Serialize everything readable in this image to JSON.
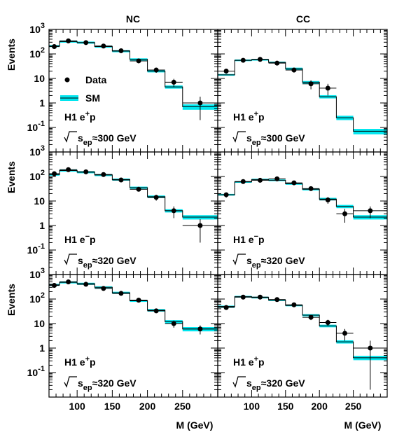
{
  "columns": [
    "NC",
    "CC"
  ],
  "y_label": "Events",
  "x_label": "M (GeV)",
  "x_ticks": [
    "100",
    "150",
    "200",
    "250"
  ],
  "y_ticks": [
    {
      "value": 1000,
      "base": "10",
      "exp": "3"
    },
    {
      "value": 100,
      "base": "10",
      "exp": "2"
    },
    {
      "value": 10,
      "base": "10",
      "exp": ""
    },
    {
      "value": 1,
      "base": "1",
      "exp": ""
    },
    {
      "value": 0.1,
      "base": "10",
      "exp": "-1"
    }
  ],
  "legend": {
    "data": "Data",
    "sm": "SM"
  },
  "colors": {
    "band": "#00e5ee",
    "ink": "#000000"
  },
  "chart_data": [
    {
      "type": "histogram-with-points",
      "row": 0,
      "column": "NC",
      "label_dataset": {
        "base": "H1 e",
        "sup": "+",
        "tail": "p"
      },
      "label_energy": "300 GeV",
      "xlim": [
        60,
        300
      ],
      "ylim": [
        0.01,
        1000
      ],
      "yscale": "log",
      "legend_placement": "left",
      "bins": [
        60,
        75,
        100,
        125,
        150,
        175,
        200,
        225,
        250,
        300
      ],
      "sm": [
        210,
        320,
        290,
        200,
        130,
        60,
        20,
        4.5,
        0.7
      ],
      "sm_err": [
        0.1,
        0.1,
        0.1,
        0.1,
        0.1,
        0.1,
        0.12,
        0.15,
        0.25
      ],
      "data_x": [
        67.5,
        87.5,
        112.5,
        137.5,
        162.5,
        187.5,
        212.5,
        237.5,
        275
      ],
      "data_y": [
        200,
        340,
        290,
        210,
        135,
        52,
        22,
        7,
        1.0
      ],
      "data_err": [
        14,
        18,
        17,
        14,
        12,
        7,
        5,
        2.6,
        0.8
      ]
    },
    {
      "type": "histogram-with-points",
      "row": 0,
      "column": "CC",
      "label_dataset": {
        "base": "H1 e",
        "sup": "+",
        "tail": "p"
      },
      "label_energy": "300 GeV",
      "xlim": [
        50,
        300
      ],
      "ylim": [
        0.01,
        1000
      ],
      "yscale": "log",
      "bins": [
        50,
        75,
        100,
        125,
        150,
        175,
        200,
        225,
        250,
        300
      ],
      "sm": [
        14,
        55,
        58,
        45,
        25,
        7,
        1.8,
        0.25,
        0.07
      ],
      "sm_err": [
        0.08,
        0.08,
        0.08,
        0.08,
        0.1,
        0.12,
        0.15,
        0.2,
        0.25
      ],
      "data_x": [
        62.5,
        87.5,
        112.5,
        137.5,
        162.5,
        187.5,
        212.5
      ],
      "data_y": [
        20,
        55,
        60,
        42,
        22,
        6,
        4
      ],
      "data_err": [
        4.5,
        7.4,
        7.7,
        6.5,
        4.7,
        2.4,
        2
      ]
    },
    {
      "type": "histogram-with-points",
      "row": 1,
      "column": "NC",
      "label_dataset": {
        "base": "H1 e",
        "sup": "−",
        "tail": "p"
      },
      "label_energy": "320 GeV",
      "xlim": [
        60,
        300
      ],
      "ylim": [
        0.01,
        1000
      ],
      "yscale": "log",
      "bins": [
        60,
        75,
        100,
        125,
        150,
        175,
        200,
        225,
        250,
        300
      ],
      "sm": [
        120,
        175,
        150,
        115,
        75,
        35,
        15,
        4,
        2.2
      ],
      "sm_err": [
        0.1,
        0.1,
        0.1,
        0.1,
        0.1,
        0.1,
        0.12,
        0.15,
        0.2
      ],
      "data_x": [
        67.5,
        87.5,
        112.5,
        137.5,
        162.5,
        187.5,
        212.5,
        237.5,
        275
      ],
      "data_y": [
        130,
        190,
        155,
        120,
        72,
        30,
        14,
        4,
        1.0
      ],
      "data_err": [
        11,
        14,
        12,
        11,
        8.5,
        5.5,
        3.7,
        2,
        0.8
      ]
    },
    {
      "type": "histogram-with-points",
      "row": 1,
      "column": "CC",
      "label_dataset": {
        "base": "H1 e",
        "sup": "−",
        "tail": "p"
      },
      "label_energy": "320 GeV",
      "xlim": [
        50,
        300
      ],
      "ylim": [
        0.01,
        1000
      ],
      "yscale": "log",
      "bins": [
        50,
        75,
        100,
        125,
        150,
        175,
        200,
        225,
        250,
        300
      ],
      "sm": [
        18,
        60,
        75,
        70,
        50,
        30,
        12,
        6,
        2.2
      ],
      "sm_err": [
        0.08,
        0.08,
        0.08,
        0.08,
        0.08,
        0.1,
        0.12,
        0.15,
        0.2
      ],
      "data_x": [
        62.5,
        87.5,
        112.5,
        137.5,
        162.5,
        187.5,
        212.5,
        237.5,
        275
      ],
      "data_y": [
        18,
        62,
        70,
        80,
        55,
        32,
        11,
        3,
        4
      ],
      "data_err": [
        4.2,
        7.9,
        8.4,
        9,
        7.4,
        5.7,
        3.3,
        1.7,
        2
      ]
    },
    {
      "type": "histogram-with-points",
      "row": 2,
      "column": "NC",
      "label_dataset": {
        "base": "H1 e",
        "sup": "+",
        "tail": "p"
      },
      "label_energy": "320 GeV",
      "xlim": [
        60,
        300
      ],
      "ylim": [
        0.01,
        1000
      ],
      "yscale": "log",
      "bins": [
        60,
        75,
        100,
        125,
        150,
        175,
        200,
        225,
        250,
        300
      ],
      "sm": [
        380,
        480,
        420,
        300,
        180,
        85,
        35,
        12,
        6
      ],
      "sm_err": [
        0.1,
        0.1,
        0.1,
        0.1,
        0.1,
        0.1,
        0.12,
        0.15,
        0.2
      ],
      "data_x": [
        67.5,
        87.5,
        112.5,
        137.5,
        162.5,
        187.5,
        212.5,
        237.5,
        275
      ],
      "data_y": [
        360,
        500,
        400,
        270,
        170,
        90,
        33,
        10,
        6
      ],
      "data_err": [
        19,
        22,
        20,
        16,
        13,
        9.5,
        5.7,
        3.2,
        2.4
      ]
    },
    {
      "type": "histogram-with-points",
      "row": 2,
      "column": "CC",
      "label_dataset": {
        "base": "H1 e",
        "sup": "+",
        "tail": "p"
      },
      "label_energy": "320 GeV",
      "xlim": [
        50,
        300
      ],
      "ylim": [
        0.01,
        1000
      ],
      "yscale": "log",
      "bins": [
        50,
        75,
        100,
        125,
        150,
        175,
        200,
        225,
        250,
        300
      ],
      "sm": [
        50,
        125,
        115,
        90,
        55,
        22,
        8,
        1.8,
        0.4
      ],
      "sm_err": [
        0.08,
        0.08,
        0.08,
        0.08,
        0.08,
        0.1,
        0.12,
        0.15,
        0.2
      ],
      "data_x": [
        62.5,
        87.5,
        112.5,
        137.5,
        162.5,
        187.5,
        212.5,
        237.5,
        275
      ],
      "data_y": [
        45,
        120,
        120,
        95,
        58,
        18,
        11,
        4,
        1.0
      ],
      "data_err": [
        6.7,
        11,
        11,
        9.7,
        7.6,
        4.2,
        3.3,
        2,
        1
      ]
    }
  ]
}
